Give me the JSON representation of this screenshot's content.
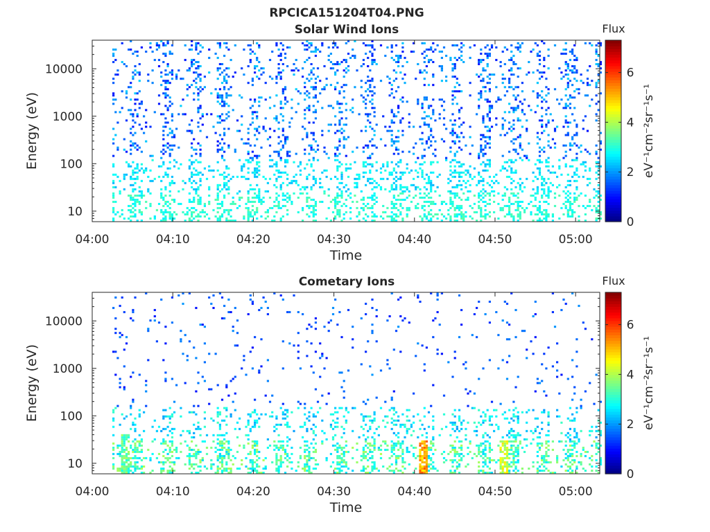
{
  "figure": {
    "title": "RPCICA151204T04.PNG"
  },
  "chart_data": [
    {
      "type": "heatmap",
      "title": "Solar Wind Ions",
      "xlabel": "Time",
      "ylabel": "Energy (eV)",
      "x_ticks": [
        "04:00",
        "04:10",
        "04:20",
        "04:30",
        "04:40",
        "04:50",
        "05:00"
      ],
      "y_scale": "log",
      "y_ticks": [
        "10",
        "100",
        "1000",
        "10000"
      ],
      "ylim": [
        6,
        40000
      ],
      "xlim": [
        "04:00",
        "05:03"
      ],
      "colorbar": {
        "label": "Flux",
        "unit": "eV⁻¹cm⁻²sr⁻¹s⁻¹",
        "range": [
          0,
          7.3
        ],
        "ticks": [
          "0",
          "2",
          "4",
          "6"
        ],
        "colormap": "jet"
      },
      "grid": false,
      "pattern": "sparse pixels from ~04:02:30 to 05:03, mostly flux 1–2.5 at high energies (~100–30000 eV) and 2.5–3.3 below ~100 eV, in bursts repeating every ~3.6 min"
    },
    {
      "type": "heatmap",
      "title": "Cometary Ions",
      "xlabel": "Time",
      "ylabel": "Energy (eV)",
      "x_ticks": [
        "04:00",
        "04:10",
        "04:20",
        "04:30",
        "04:40",
        "04:50",
        "05:00"
      ],
      "y_scale": "log",
      "y_ticks": [
        "10",
        "100",
        "1000",
        "10000"
      ],
      "ylim": [
        6,
        40000
      ],
      "xlim": [
        "04:00",
        "05:03"
      ],
      "colorbar": {
        "label": "Flux",
        "unit": "eV⁻¹cm⁻²sr⁻¹s⁻¹",
        "range": [
          0,
          7.3
        ],
        "ticks": [
          "0",
          "2",
          "4",
          "6"
        ],
        "colormap": "jet"
      },
      "grid": false,
      "hotspots": [
        {
          "time": "04:41",
          "energy_eV": [
            6,
            30
          ],
          "flux": 5.8
        },
        {
          "time": "04:51",
          "energy_eV": [
            6,
            30
          ],
          "flux": 4.8
        },
        {
          "time": "04:04",
          "energy_eV": [
            6,
            40
          ],
          "flux": 4.0
        }
      ],
      "pattern": "sparse low-flux pixels (~1–2) at 200–30000 eV, denser flux 2–4 below ~100 eV in vertical streaks repeating every ~3.6 min"
    }
  ]
}
